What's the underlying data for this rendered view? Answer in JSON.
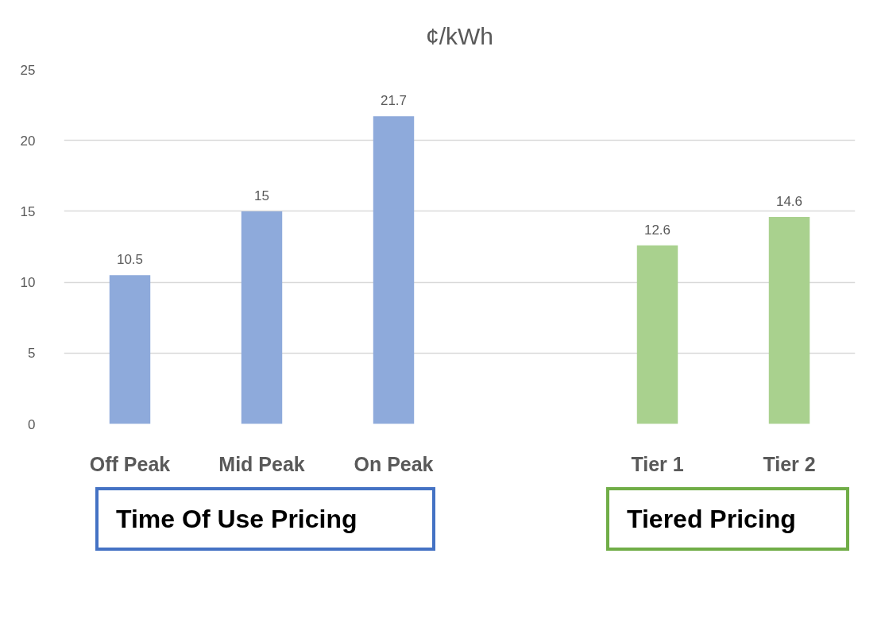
{
  "chart_data": {
    "type": "bar",
    "title": "¢/kWh",
    "categories": [
      "Off Peak",
      "Mid Peak",
      "On Peak",
      null,
      "Tier 1",
      "Tier 2"
    ],
    "values": [
      10.5,
      15,
      21.7,
      null,
      12.6,
      14.6
    ],
    "colors": [
      "#8eaadb",
      "#8eaadb",
      "#8eaadb",
      "#8eaadb",
      "#a9d18e",
      "#a9d18e"
    ],
    "ylim": [
      0,
      25
    ],
    "yticks": [
      0,
      5,
      10,
      15,
      20,
      25
    ],
    "grid": "y",
    "data_labels": true,
    "annotations": [
      "Time Of Use Pricing",
      "Tiered Pricing"
    ]
  }
}
